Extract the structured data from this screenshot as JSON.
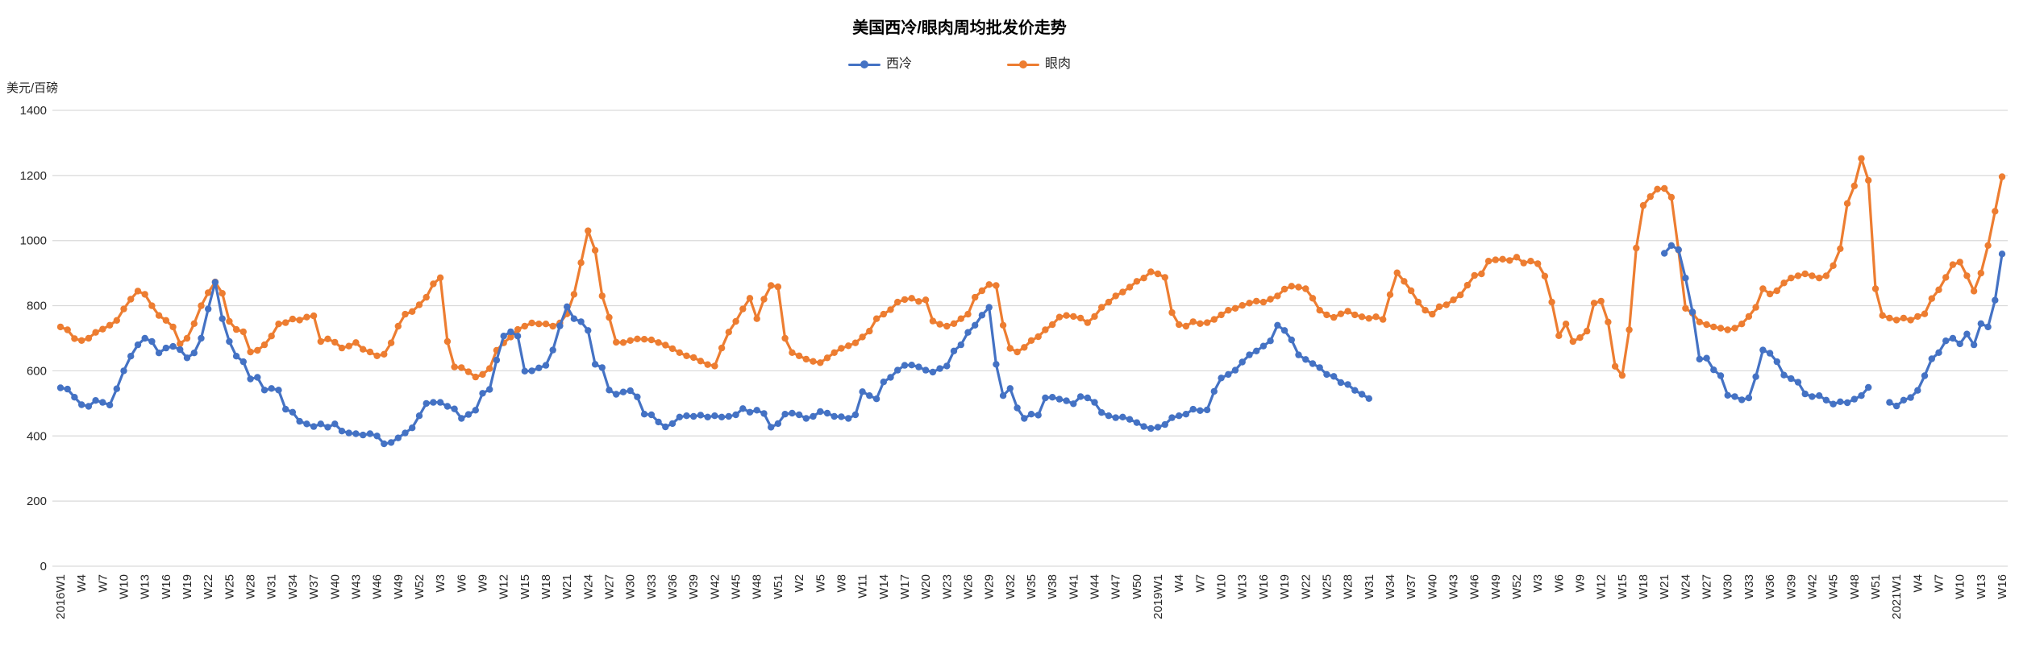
{
  "title": "美国西冷/眼肉周均批发价走势",
  "y_axis_unit": "美元/百磅",
  "colors": {
    "series1": "#4472C4",
    "series2": "#ED7D31",
    "gridline": "#D9D9D9",
    "tick_text": "#262626"
  },
  "chart_data": {
    "type": "line",
    "title": "美国西冷/眼肉周均批发价走势",
    "xlabel": "",
    "ylabel": "美元/百磅",
    "ylim": [
      0,
      1400
    ],
    "yticks": [
      0,
      200,
      400,
      600,
      800,
      1000,
      1200,
      1400
    ],
    "grid": true,
    "legend_position": "top-center",
    "marker": "circle",
    "x_tick_step_weeks": 3,
    "x_tick_labels": [
      "2016W1",
      "W4",
      "W7",
      "W10",
      "W13",
      "W16",
      "W19",
      "W22",
      "W25",
      "W28",
      "W31",
      "W34",
      "W37",
      "W40",
      "W43",
      "W46",
      "W49",
      "W52",
      "W3",
      "W6",
      "W9",
      "W12",
      "W15",
      "W18",
      "W21",
      "W24",
      "W27",
      "W30",
      "W33",
      "W36",
      "W39",
      "W42",
      "W45",
      "W48",
      "W51",
      "W2",
      "W5",
      "W8",
      "W11",
      "W14",
      "W17",
      "W20",
      "W23",
      "W26",
      "W29",
      "W32",
      "W35",
      "W38",
      "W41",
      "W44",
      "W47",
      "W50",
      "2019W1",
      "W4",
      "W7",
      "W10",
      "W13",
      "W16",
      "W19",
      "W22",
      "W25",
      "W28",
      "W31",
      "W34",
      "W37",
      "W40",
      "W43",
      "W46",
      "W49",
      "W52",
      "W3",
      "W6",
      "W9",
      "W12",
      "W15",
      "W18",
      "W21",
      "W24",
      "W27",
      "W30",
      "W33",
      "W36",
      "W39",
      "W42",
      "W45",
      "W48",
      "W51",
      "2021W1",
      "W4",
      "W7",
      "W10",
      "W13",
      "W16"
    ],
    "series": [
      {
        "name": "西冷",
        "color": "#4472C4",
        "values": [
          548,
          544,
          519,
          496,
          491,
          509,
          503,
          495,
          545,
          600,
          645,
          680,
          700,
          690,
          655,
          670,
          675,
          665,
          640,
          655,
          700,
          790,
          872,
          760,
          690,
          645,
          628,
          575,
          580,
          541,
          546,
          541,
          482,
          473,
          445,
          437,
          429,
          437,
          427,
          437,
          415,
          409,
          407,
          403,
          407,
          400,
          376,
          380,
          394,
          409,
          425,
          462,
          500,
          503,
          503,
          491,
          483,
          454,
          466,
          479,
          531,
          543,
          633,
          707,
          720,
          707,
          599,
          600,
          609,
          617,
          664,
          738,
          797,
          760,
          751,
          724,
          620,
          610,
          541,
          528,
          535,
          539,
          520,
          467,
          465,
          443,
          428,
          438,
          458,
          462,
          460,
          464,
          458,
          462,
          458,
          460,
          465,
          484,
          473,
          479,
          469,
          427,
          438,
          467,
          470,
          465,
          454,
          460,
          475,
          470,
          460,
          459,
          454,
          465,
          536,
          524,
          514,
          566,
          580,
          602,
          617,
          618,
          612,
          602,
          596,
          607,
          615,
          661,
          680,
          718,
          740,
          771,
          795,
          620,
          524,
          546,
          486,
          454,
          467,
          464,
          517,
          519,
          513,
          508,
          499,
          521,
          517,
          503,
          472,
          462,
          456,
          458,
          451,
          441,
          429,
          423,
          427,
          435,
          456,
          462,
          467,
          482,
          478,
          480,
          537,
          578,
          589,
          602,
          627,
          649,
          661,
          676,
          692,
          740,
          724,
          695,
          649,
          635,
          622,
          610,
          589,
          583,
          564,
          558,
          540,
          528,
          515,
          null,
          null,
          null,
          null,
          null,
          null,
          null,
          null,
          null,
          null,
          null,
          null,
          null,
          null,
          null,
          null,
          null,
          null,
          null,
          null,
          null,
          null,
          null,
          null,
          null,
          null,
          null,
          null,
          null,
          null,
          null,
          null,
          null,
          null,
          null,
          null,
          null,
          null,
          null,
          null,
          null,
          961,
          985,
          972,
          885,
          781,
          636,
          639,
          603,
          585,
          525,
          521,
          511,
          517,
          582,
          664,
          654,
          628,
          587,
          576,
          565,
          529,
          521,
          524,
          510,
          498,
          505,
          502,
          513,
          524,
          549,
          null,
          null,
          503,
          492,
          510,
          518,
          540,
          585,
          637,
          656,
          692,
          700,
          683,
          713,
          680,
          745,
          735,
          817,
          959
        ]
      },
      {
        "name": "眼肉",
        "color": "#ED7D31",
        "values": [
          735,
          726,
          699,
          693,
          700,
          718,
          728,
          740,
          755,
          790,
          820,
          845,
          835,
          800,
          770,
          755,
          735,
          683,
          700,
          745,
          800,
          840,
          873,
          838,
          752,
          727,
          720,
          658,
          663,
          680,
          707,
          744,
          748,
          759,
          756,
          765,
          769,
          690,
          698,
          688,
          670,
          676,
          687,
          666,
          658,
          646,
          651,
          686,
          737,
          774,
          782,
          803,
          826,
          867,
          886,
          690,
          612,
          610,
          597,
          581,
          589,
          607,
          663,
          686,
          704,
          727,
          737,
          747,
          744,
          744,
          737,
          747,
          775,
          835,
          932,
          1030,
          970,
          830,
          764,
          688,
          687,
          693,
          698,
          697,
          695,
          687,
          679,
          668,
          656,
          646,
          641,
          630,
          619,
          615,
          670,
          719,
          752,
          790,
          823,
          760,
          820,
          862,
          858,
          700,
          656,
          646,
          636,
          629,
          625,
          640,
          656,
          669,
          677,
          686,
          704,
          722,
          760,
          774,
          788,
          811,
          819,
          823,
          813,
          818,
          753,
          743,
          737,
          745,
          760,
          774,
          826,
          846,
          865,
          862,
          740,
          669,
          658,
          672,
          693,
          705,
          726,
          742,
          765,
          770,
          767,
          762,
          748,
          767,
          795,
          811,
          830,
          842,
          857,
          875,
          885,
          904,
          898,
          887,
          779,
          742,
          737,
          751,
          745,
          748,
          758,
          772,
          786,
          792,
          801,
          808,
          814,
          811,
          820,
          830,
          851,
          860,
          857,
          852,
          823,
          786,
          772,
          764,
          775,
          783,
          772,
          766,
          761,
          766,
          758,
          834,
          901,
          875,
          846,
          811,
          786,
          774,
          797,
          803,
          818,
          833,
          863,
          893,
          898,
          937,
          941,
          943,
          939,
          949,
          931,
          937,
          929,
          891,
          811,
          708,
          744,
          690,
          702,
          722,
          808,
          814,
          750,
          614,
          586,
          726,
          977,
          1108,
          1135,
          1158,
          1160,
          1133,
          971,
          792,
          777,
          750,
          742,
          735,
          731,
          726,
          731,
          744,
          767,
          795,
          852,
          836,
          846,
          870,
          885,
          892,
          898,
          892,
          885,
          892,
          923,
          975,
          1114,
          1168,
          1252,
          1185,
          852,
          770,
          762,
          756,
          762,
          756,
          767,
          775,
          822,
          849,
          887,
          926,
          934,
          892,
          845,
          900,
          985,
          1090,
          1196
        ]
      }
    ]
  }
}
